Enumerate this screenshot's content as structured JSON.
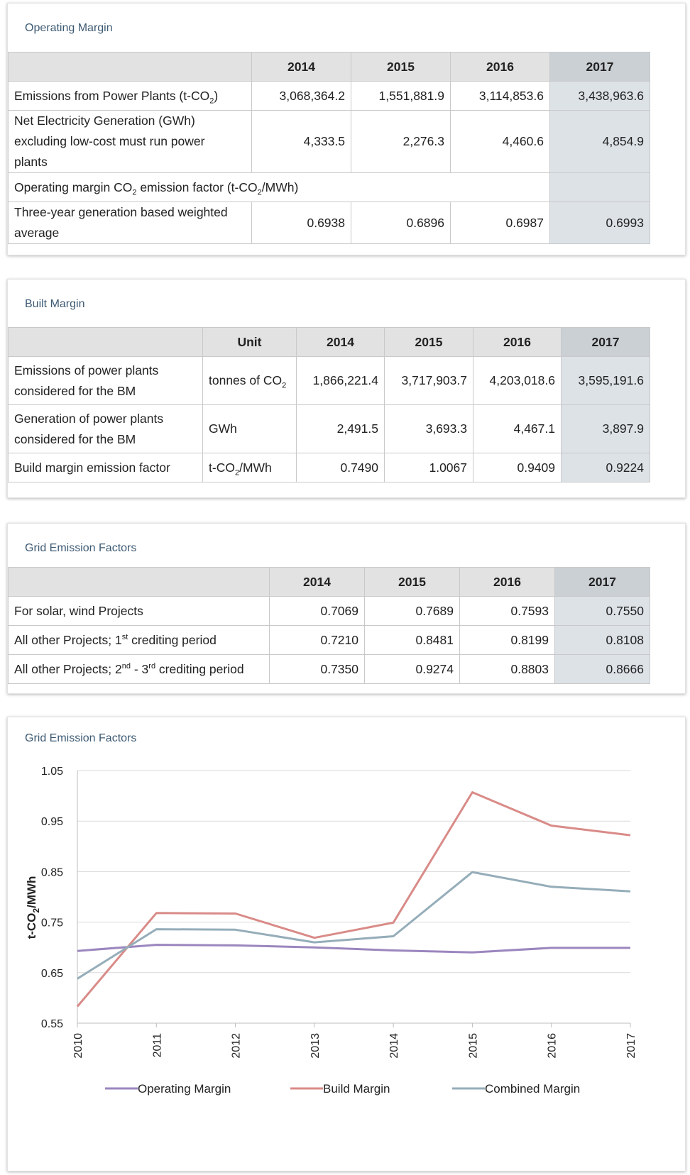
{
  "operating_margin": {
    "title": "Operating Margin",
    "years": [
      "2014",
      "2015",
      "2016",
      "2017"
    ],
    "rows": [
      {
        "label_pre": "Emissions from Power Plants (t-CO",
        "label_sub": "2",
        "label_post": ")",
        "values": [
          "3,068,364.2",
          "1,551,881.9",
          "3,114,853.6",
          "3,438,963.6"
        ]
      },
      {
        "label_l1": "Net Electricity Generation (GWh)",
        "label_l2": "excluding low-cost must run power",
        "label_l3": "plants",
        "values": [
          "4,333.5",
          "2,276.3",
          "4,460.6",
          "4,854.9"
        ]
      },
      {
        "label_pre": "Operating margin CO",
        "label_sub": "2",
        "label_mid": " emission factor (t-CO",
        "label_sub2": "2",
        "label_post": "/MWh)"
      },
      {
        "label_l1": "Three-year generation based weighted",
        "label_l2": "average",
        "values": [
          "0.6938",
          "0.6896",
          "0.6987",
          "0.6993"
        ]
      }
    ]
  },
  "built_margin": {
    "title": "Built Margin",
    "unit_header": "Unit",
    "years": [
      "2014",
      "2015",
      "2016",
      "2017"
    ],
    "rows": [
      {
        "label_l1": "Emissions of power plants",
        "label_l2": "considered for the BM",
        "unit_pre": "tonnes of CO",
        "unit_sub": "2",
        "values": [
          "1,866,221.4",
          "3,717,903.7",
          "4,203,018.6",
          "3,595,191.6"
        ]
      },
      {
        "label_l1": "Generation of power plants",
        "label_l2": "considered for the BM",
        "unit_pre": "GWh",
        "values": [
          "2,491.5",
          "3,693.3",
          "4,467.1",
          "3,897.9"
        ]
      },
      {
        "label_l1": "Build margin emission factor",
        "unit_pre": "t-CO",
        "unit_sub": "2",
        "unit_post": "/MWh",
        "values": [
          "0.7490",
          "1.0067",
          "0.9409",
          "0.9224"
        ]
      }
    ]
  },
  "grid_factors": {
    "title": "Grid Emission Factors",
    "years": [
      "2014",
      "2015",
      "2016",
      "2017"
    ],
    "rows": [
      {
        "label_pre": "For solar, wind  Projects",
        "values": [
          "0.7069",
          "0.7689",
          "0.7593",
          "0.7550"
        ]
      },
      {
        "label_pre": "All other Projects; 1",
        "label_sup": "st",
        "label_post": " crediting period",
        "values": [
          "0.7210",
          "0.8481",
          "0.8199",
          "0.8108"
        ]
      },
      {
        "label_pre": "All other Projects; 2",
        "label_sup": "nd",
        "label_mid": " - 3",
        "label_sup2": "rd",
        "label_post": " crediting period",
        "values": [
          "0.7350",
          "0.9274",
          "0.8803",
          "0.8666"
        ]
      }
    ]
  },
  "chart_data": {
    "type": "line",
    "title": "Grid Emission Factors",
    "ylabel_pre": "t-CO",
    "ylabel_sub": "2",
    "ylabel_post": "/MWh",
    "xlabel": "",
    "x": [
      "2010",
      "2011",
      "2012",
      "2013",
      "2014",
      "2015",
      "2016",
      "2017"
    ],
    "ylim": [
      0.55,
      1.05
    ],
    "yticks": [
      "0.55",
      "0.65",
      "0.75",
      "0.85",
      "0.95",
      "1.05"
    ],
    "grid": true,
    "legend_position": "bottom",
    "series": [
      {
        "name": "Operating Margin",
        "color": "#9b86be",
        "values": [
          0.693,
          0.705,
          0.704,
          0.7,
          0.694,
          0.69,
          0.699,
          0.699
        ]
      },
      {
        "name": "Build Margin",
        "color": "#d98b88",
        "values": [
          0.583,
          0.768,
          0.767,
          0.719,
          0.749,
          1.007,
          0.941,
          0.922
        ]
      },
      {
        "name": "Combined Margin",
        "color": "#95adb9",
        "values": [
          0.638,
          0.736,
          0.735,
          0.71,
          0.722,
          0.849,
          0.82,
          0.811
        ]
      }
    ]
  }
}
